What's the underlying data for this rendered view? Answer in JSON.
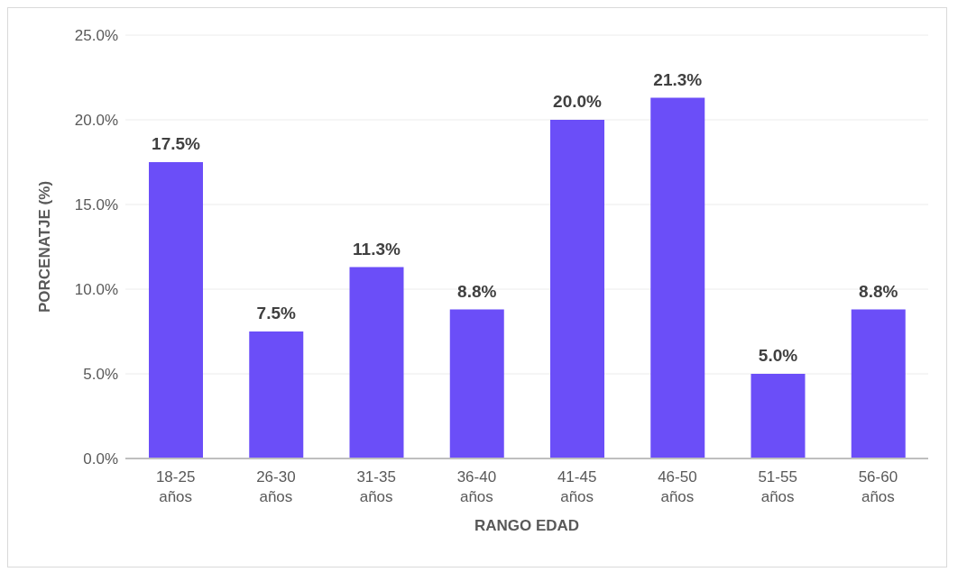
{
  "chart_data": {
    "type": "bar",
    "categories": [
      "18-25 años",
      "26-30 años",
      "31-35 años",
      "36-40 años",
      "41-45 años",
      "46-50 años",
      "51-55 años",
      "56-60 años"
    ],
    "values": [
      17.5,
      7.5,
      11.3,
      8.8,
      20.0,
      21.3,
      5.0,
      8.8
    ],
    "value_labels": [
      "17.5%",
      "7.5%",
      "11.3%",
      "8.8%",
      "20.0%",
      "21.3%",
      "5.0%",
      "8.8%"
    ],
    "color": "#6b4ef8",
    "xlabel": "RANGO EDAD",
    "ylabel": "PORCENATJE  (%)",
    "ylim": [
      0,
      25
    ],
    "yticks": [
      {
        "value": 0,
        "label": "0.0%"
      },
      {
        "value": 5,
        "label": "5.0%"
      },
      {
        "value": 10,
        "label": "10.0%"
      },
      {
        "value": 15,
        "label": "15.0%"
      },
      {
        "value": 20,
        "label": "20.0%"
      },
      {
        "value": 25,
        "label": "25.0%"
      }
    ],
    "grid": "y",
    "legend": false
  }
}
